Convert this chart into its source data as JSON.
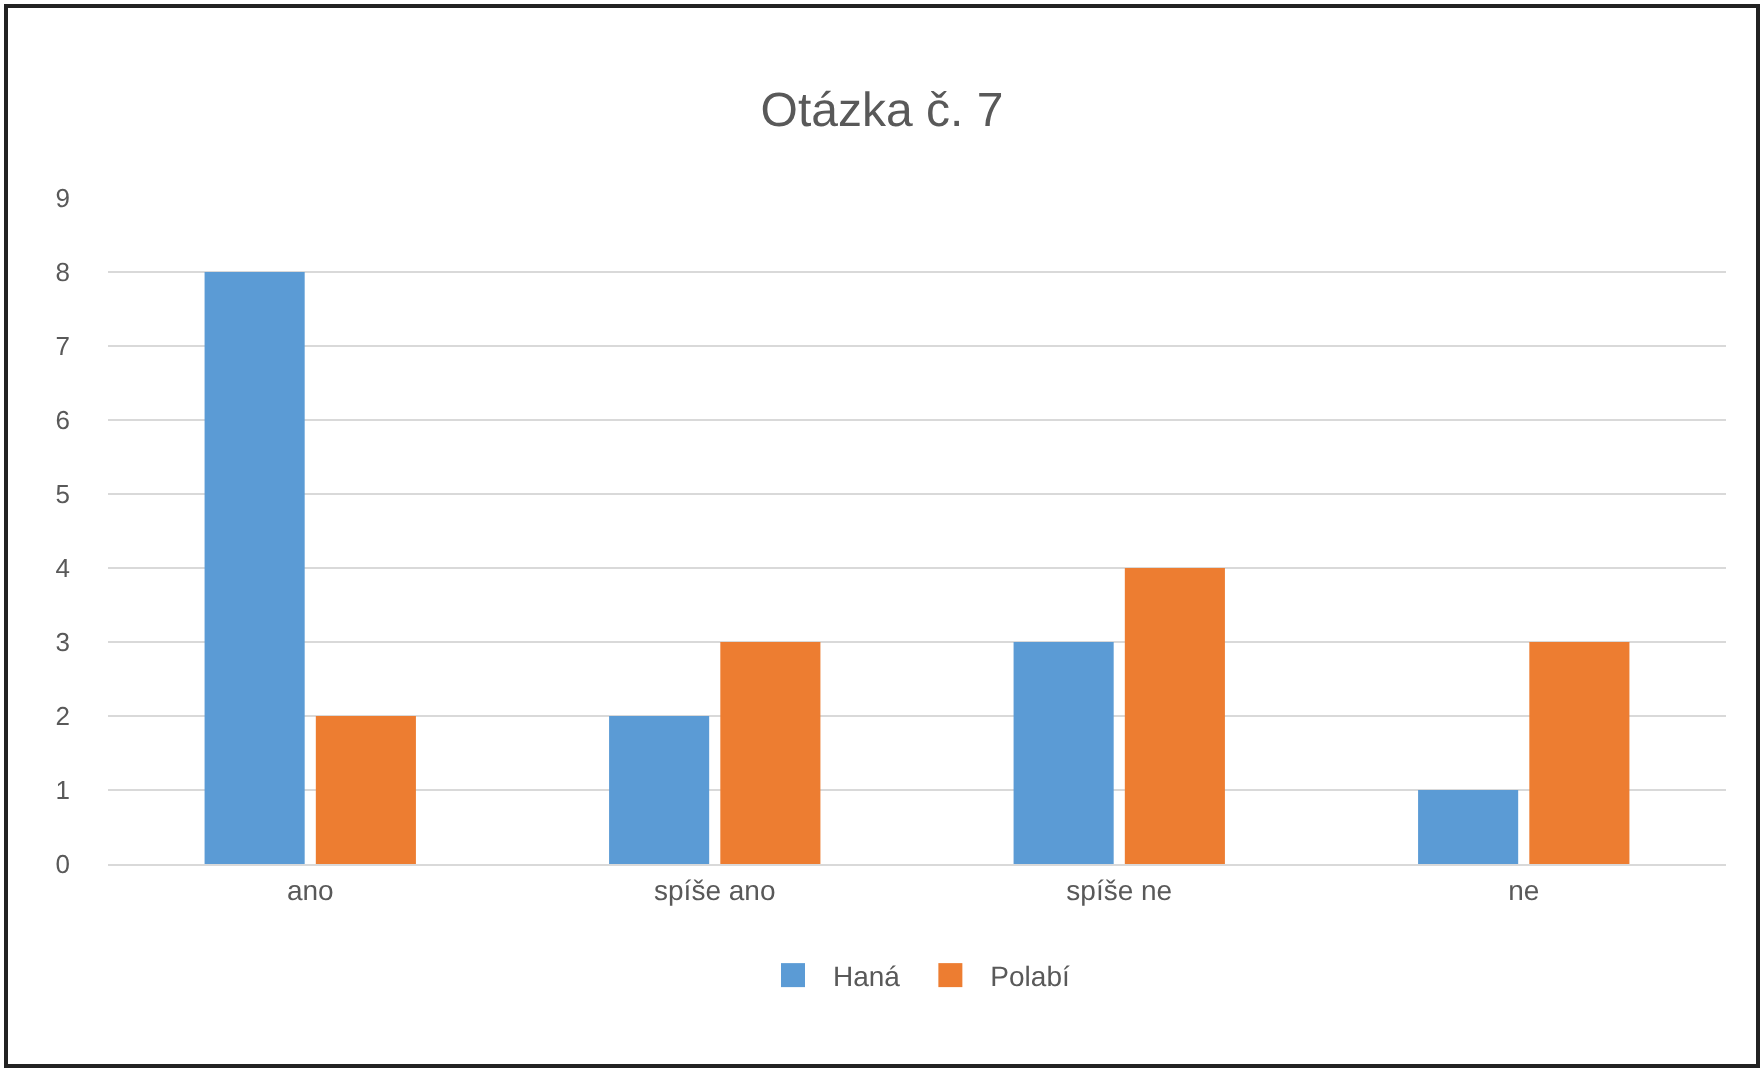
{
  "chart_data": {
    "type": "bar",
    "title": "Otázka č. 7",
    "categories": [
      "ano",
      "spíše ano",
      "spíše ne",
      "ne"
    ],
    "series": [
      {
        "name": "Haná",
        "color": "#5b9bd5",
        "values": [
          8,
          2,
          3,
          1
        ]
      },
      {
        "name": "Polabí",
        "color": "#ed7d31",
        "values": [
          2,
          3,
          4,
          3
        ]
      }
    ],
    "ylim": [
      0,
      9
    ],
    "yticks": [
      0,
      1,
      2,
      3,
      4,
      5,
      6,
      7,
      8,
      9
    ],
    "grid": "y",
    "legend": "bottom"
  }
}
